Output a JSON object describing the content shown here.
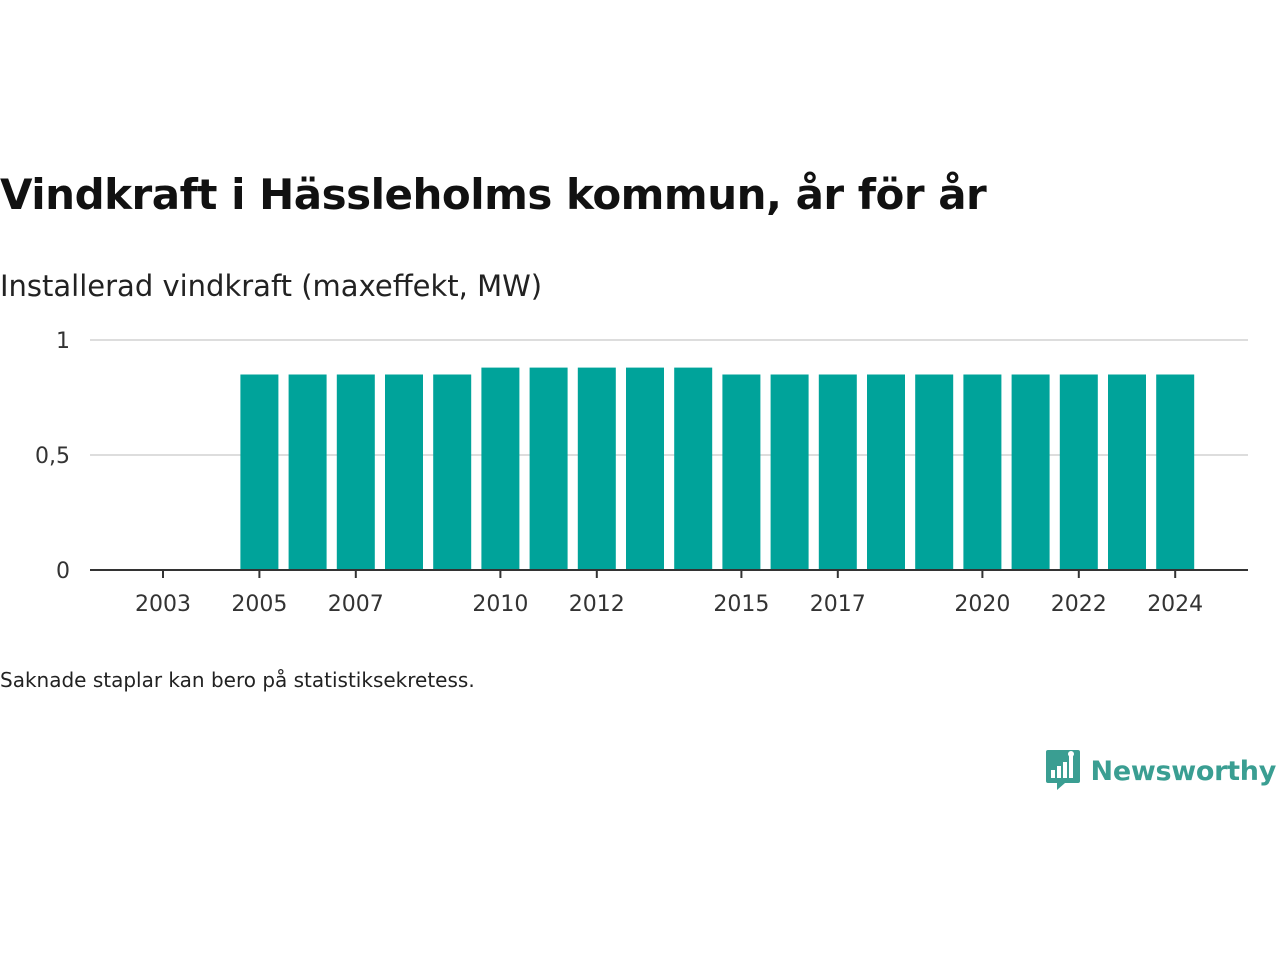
{
  "header": {
    "title": "Vindkraft i Hässleholms kommun, år för år",
    "subtitle": "Installerad vindkraft (maxeffekt, MW)"
  },
  "footer": {
    "note": "Saknade staplar kan bero på statistiksekretess.",
    "brand": "Newsworthy"
  },
  "colors": {
    "bar": "#00a39a",
    "grid": "#dddddd",
    "axis": "#333333",
    "brand": "#3a9e92"
  },
  "chart_data": {
    "type": "bar",
    "title": "Vindkraft i Hässleholms kommun, år för år",
    "ylabel": "Installerad vindkraft (maxeffekt, MW)",
    "xlabel": "",
    "categories": [
      2003,
      2004,
      2005,
      2006,
      2007,
      2008,
      2009,
      2010,
      2011,
      2012,
      2013,
      2014,
      2015,
      2016,
      2017,
      2018,
      2019,
      2020,
      2021,
      2022,
      2023,
      2024
    ],
    "values": [
      0,
      0,
      0.85,
      0.85,
      0.85,
      0.85,
      0.85,
      0.88,
      0.88,
      0.88,
      0.88,
      0.88,
      0.85,
      0.85,
      0.85,
      0.85,
      0.85,
      0.85,
      0.85,
      0.85,
      0.85,
      0.85
    ],
    "x_tick_labels": [
      "2003",
      "2005",
      "2007",
      "2010",
      "2012",
      "2015",
      "2017",
      "2020",
      "2022",
      "2024"
    ],
    "y_ticks": [
      0,
      0.5,
      1
    ],
    "y_tick_labels": [
      "0",
      "0,5",
      "1"
    ],
    "ylim": [
      0,
      1
    ],
    "grid": true,
    "legend": "none"
  }
}
